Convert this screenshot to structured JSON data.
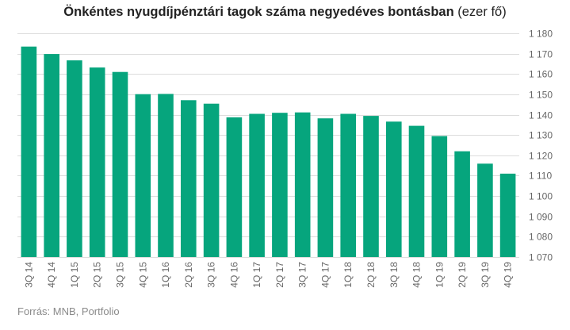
{
  "chart_data": {
    "type": "bar",
    "title": "Önkéntes nyugdíjpénztári tagok száma negyedéves bontásban",
    "title_unit": "(ezer fő)",
    "categories": [
      "3Q 14",
      "4Q 14",
      "1Q 15",
      "2Q 15",
      "3Q 15",
      "4Q 15",
      "1Q 16",
      "2Q 16",
      "3Q 16",
      "4Q 16",
      "1Q 17",
      "2Q 17",
      "3Q 17",
      "4Q 17",
      "1Q 18",
      "2Q 18",
      "3Q 18",
      "4Q 18",
      "1Q 19",
      "2Q 19",
      "3Q 19",
      "4Q 19"
    ],
    "values": [
      1173.5,
      1169.8,
      1166.7,
      1163.2,
      1161.0,
      1150.1,
      1150.2,
      1147.1,
      1145.4,
      1138.7,
      1140.4,
      1140.9,
      1141.1,
      1138.2,
      1140.4,
      1139.4,
      1136.6,
      1134.5,
      1129.5,
      1122.0,
      1115.9,
      1111.0
    ],
    "ylim": [
      1070,
      1180
    ],
    "yticks": [
      1070,
      1080,
      1090,
      1100,
      1110,
      1120,
      1130,
      1140,
      1150,
      1160,
      1170,
      1180
    ],
    "ytick_labels": [
      "1 070",
      "1 080",
      "1 090",
      "1 100",
      "1 110",
      "1 120",
      "1 130",
      "1 140",
      "1 150",
      "1 160",
      "1 170",
      "1 180"
    ],
    "y_axis_side": "right",
    "grid": true,
    "legend": "none",
    "bar_color": "#06a57d",
    "grid_color": "#dcdcdc",
    "source": "Forrás: MNB, Portfolio"
  }
}
